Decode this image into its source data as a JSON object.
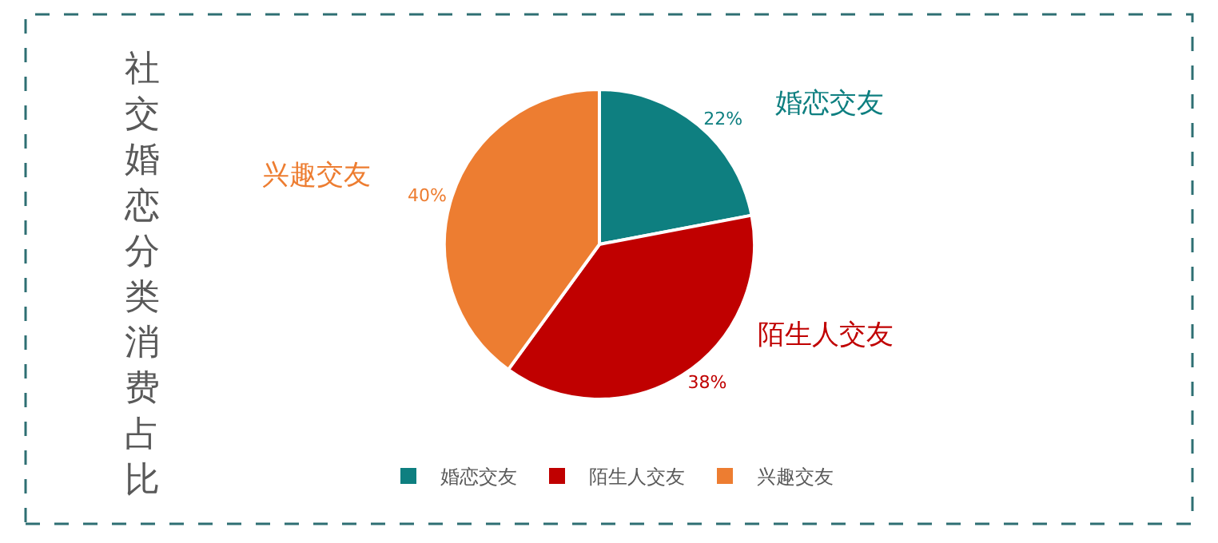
{
  "chart_data": {
    "type": "pie",
    "title": "社交婚恋分类消费占比",
    "categories": [
      "婚恋交友",
      "陌生人交友",
      "兴趣交友"
    ],
    "values": [
      22,
      38,
      40
    ],
    "value_labels": [
      "22%",
      "38%",
      "40%"
    ],
    "colors": [
      "#0e7f80",
      "#c00000",
      "#ed7d31"
    ],
    "legend": "bottom"
  }
}
